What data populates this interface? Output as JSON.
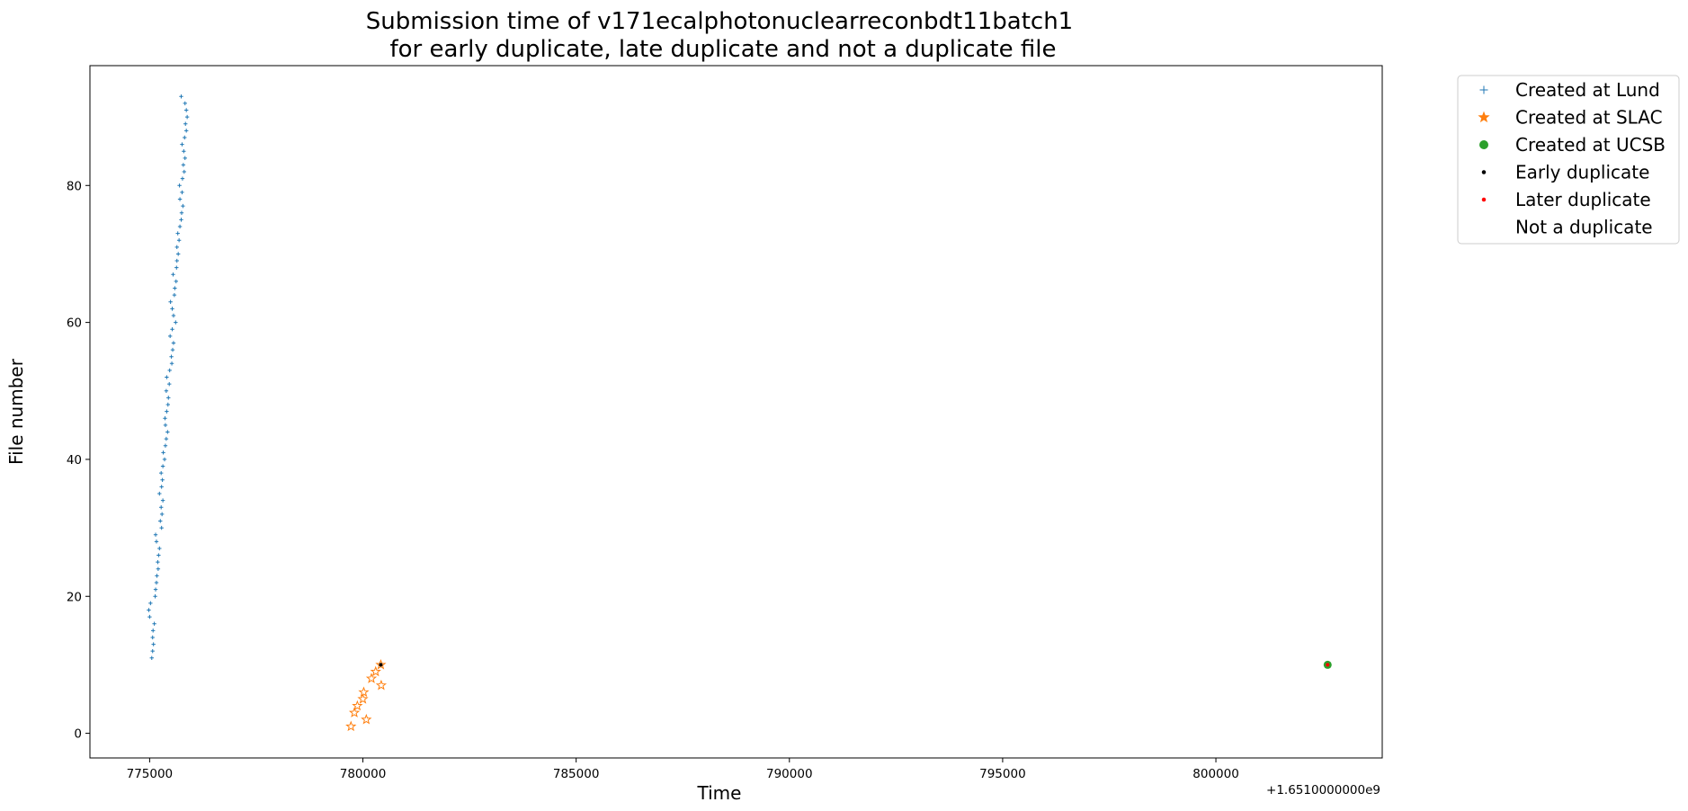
{
  "chart_data": {
    "type": "scatter",
    "title_lines": [
      "Submission time of v171ecalphotonuclearreconbdt11batch1",
      "for early duplicate, late duplicate and not a duplicate file"
    ],
    "xlabel": "Time",
    "ylabel": "File number",
    "x_offset_label": "+1.6510000000e9",
    "xlim": [
      773600,
      803900
    ],
    "ylim": [
      -3.6,
      97.5
    ],
    "x_ticks": [
      775000,
      780000,
      785000,
      790000,
      795000,
      800000
    ],
    "x_tick_labels": [
      "775000",
      "780000",
      "785000",
      "790000",
      "795000",
      "800000"
    ],
    "y_ticks": [
      0,
      20,
      40,
      60,
      80
    ],
    "y_tick_labels": [
      "0",
      "20",
      "40",
      "60",
      "80"
    ],
    "grid": false,
    "legend_placement": "outside-top-right",
    "series": [
      {
        "name": "Created at Lund",
        "marker": "plus",
        "color": "#1f77b4",
        "points": [
          [
            775050,
            11
          ],
          [
            775070,
            12
          ],
          [
            775090,
            13
          ],
          [
            775070,
            14
          ],
          [
            775080,
            15
          ],
          [
            775110,
            16
          ],
          [
            775000,
            17
          ],
          [
            774980,
            18
          ],
          [
            775020,
            19
          ],
          [
            775130,
            20
          ],
          [
            775140,
            21
          ],
          [
            775160,
            22
          ],
          [
            775170,
            23
          ],
          [
            775200,
            24
          ],
          [
            775190,
            25
          ],
          [
            775210,
            26
          ],
          [
            775230,
            27
          ],
          [
            775160,
            28
          ],
          [
            775140,
            29
          ],
          [
            775280,
            30
          ],
          [
            775250,
            31
          ],
          [
            775290,
            32
          ],
          [
            775270,
            33
          ],
          [
            775310,
            34
          ],
          [
            775230,
            35
          ],
          [
            775280,
            36
          ],
          [
            775300,
            37
          ],
          [
            775270,
            38
          ],
          [
            775310,
            39
          ],
          [
            775350,
            40
          ],
          [
            775320,
            41
          ],
          [
            775370,
            42
          ],
          [
            775390,
            43
          ],
          [
            775420,
            44
          ],
          [
            775370,
            45
          ],
          [
            775360,
            46
          ],
          [
            775400,
            47
          ],
          [
            775430,
            48
          ],
          [
            775440,
            49
          ],
          [
            775390,
            50
          ],
          [
            775460,
            51
          ],
          [
            775400,
            52
          ],
          [
            775470,
            53
          ],
          [
            775520,
            54
          ],
          [
            775510,
            55
          ],
          [
            775540,
            56
          ],
          [
            775560,
            57
          ],
          [
            775480,
            58
          ],
          [
            775530,
            59
          ],
          [
            775610,
            60
          ],
          [
            775560,
            61
          ],
          [
            775530,
            62
          ],
          [
            775490,
            63
          ],
          [
            775580,
            64
          ],
          [
            775590,
            65
          ],
          [
            775620,
            66
          ],
          [
            775550,
            67
          ],
          [
            775630,
            68
          ],
          [
            775640,
            69
          ],
          [
            775670,
            70
          ],
          [
            775640,
            71
          ],
          [
            775690,
            72
          ],
          [
            775660,
            73
          ],
          [
            775710,
            74
          ],
          [
            775740,
            75
          ],
          [
            775750,
            76
          ],
          [
            775780,
            77
          ],
          [
            775710,
            78
          ],
          [
            775760,
            79
          ],
          [
            775700,
            80
          ],
          [
            775770,
            81
          ],
          [
            775810,
            82
          ],
          [
            775790,
            83
          ],
          [
            775830,
            84
          ],
          [
            775800,
            85
          ],
          [
            775760,
            86
          ],
          [
            775820,
            87
          ],
          [
            775860,
            88
          ],
          [
            775840,
            89
          ],
          [
            775880,
            90
          ],
          [
            775860,
            91
          ],
          [
            775830,
            92
          ],
          [
            775740,
            93
          ]
        ]
      },
      {
        "name": "Created at SLAC",
        "marker": "star",
        "color": "#ff7f0e",
        "points": [
          [
            779720,
            1
          ],
          [
            780080,
            2
          ],
          [
            779800,
            3
          ],
          [
            779870,
            4
          ],
          [
            780000,
            5
          ],
          [
            780020,
            6
          ],
          [
            780430,
            7
          ],
          [
            780200,
            8
          ],
          [
            780300,
            9
          ],
          [
            780420,
            10
          ]
        ]
      },
      {
        "name": "Created at UCSB",
        "marker": "circle",
        "color": "#2ca02c",
        "points": [
          [
            802620,
            10
          ]
        ]
      },
      {
        "name": "Early duplicate",
        "marker": "dot",
        "color": "#000000",
        "points": [
          [
            780420,
            10
          ]
        ]
      },
      {
        "name": "Later duplicate",
        "marker": "dot",
        "color": "#ff0000",
        "points": [
          [
            802620,
            10
          ]
        ]
      },
      {
        "name": "Not a duplicate",
        "marker": "none",
        "color": "#ffffff",
        "points": []
      }
    ]
  }
}
